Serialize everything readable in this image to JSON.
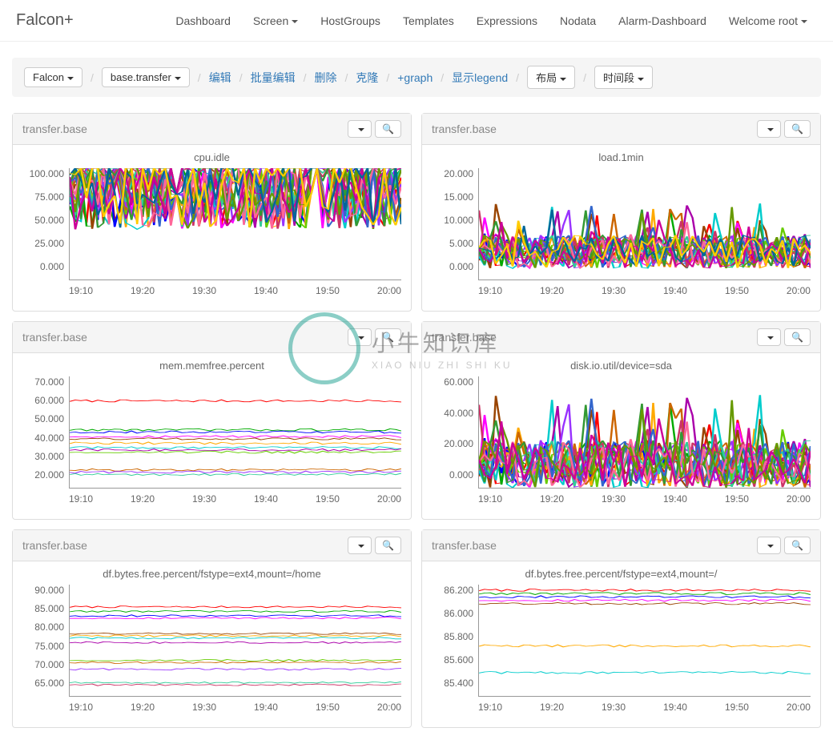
{
  "brand": "Falcon+",
  "nav": {
    "dashboard": "Dashboard",
    "screen": "Screen",
    "hostgroups": "HostGroups",
    "templates": "Templates",
    "expressions": "Expressions",
    "nodata": "Nodata",
    "alarm": "Alarm-Dashboard",
    "welcome": "Welcome root"
  },
  "breadcrumb": {
    "falcon": "Falcon",
    "base_transfer": "base.transfer",
    "edit": "编辑",
    "batch_edit": "批量编辑",
    "delete": "删除",
    "clone": "克隆",
    "add_graph": "+graph",
    "show_legend": "显示legend",
    "layout": "布局",
    "time_range": "时间段"
  },
  "common": {
    "panel_title": "transfer.base",
    "xticks": [
      "19:10",
      "19:20",
      "19:30",
      "19:40",
      "19:50",
      "20:00"
    ],
    "series_colors": [
      "#ff0000",
      "#00aa00",
      "#0000ff",
      "#ff00ff",
      "#994400",
      "#ffaa00",
      "#00cccc",
      "#aa00aa",
      "#66cc00",
      "#cc6600",
      "#9933ff",
      "#33cc99",
      "#cc3366",
      "#339933",
      "#3366cc",
      "#ff6699",
      "#669900",
      "#cc0099",
      "#006699",
      "#ffcc00"
    ]
  },
  "charts": [
    {
      "title": "cpu.idle",
      "ymin": 0,
      "ymax": 100,
      "yticks": [
        "100.000",
        "75.000",
        "50.000",
        "25.000",
        "0.000"
      ],
      "mode": "noisy",
      "baseline": 85,
      "spread": 80,
      "lines": 20,
      "points": 60
    },
    {
      "title": "load.1min",
      "ymin": 0,
      "ymax": 20,
      "yticks": [
        "20.000",
        "15.000",
        "10.000",
        "5.000",
        "0.000"
      ],
      "mode": "noisy",
      "baseline": 5,
      "spread": 6,
      "lines": 20,
      "points": 60,
      "spikes": true
    },
    {
      "title": "mem.memfree.percent",
      "ymin": 20,
      "ymax": 70,
      "yticks": [
        "70.000",
        "60.000",
        "50.000",
        "40.000",
        "30.000",
        "20.000"
      ],
      "mode": "flat",
      "levels": [
        59,
        46,
        45,
        43,
        42,
        40,
        38,
        37,
        36,
        28,
        27,
        26
      ],
      "jitter": 0.5,
      "points": 60
    },
    {
      "title": "disk.io.util/device=sda",
      "ymin": 0,
      "ymax": 70,
      "yticks": [
        "60.000",
        "40.000",
        "20.000",
        "0.000"
      ],
      "mode": "noisy",
      "baseline": 15,
      "spread": 30,
      "lines": 18,
      "points": 60,
      "spikes": true
    },
    {
      "title": "df.bytes.free.percent/fstype=ext4,mount=/home",
      "ymin": 65,
      "ymax": 90,
      "yticks": [
        "90.000",
        "85.000",
        "80.000",
        "75.000",
        "70.000",
        "65.000"
      ],
      "mode": "flat",
      "levels": [
        85,
        84,
        83,
        82.5,
        79,
        78.5,
        78,
        77,
        73,
        72.5,
        71,
        68,
        67.5
      ],
      "jitter": 0.2,
      "points": 60
    },
    {
      "title": "df.bytes.free.percent/fstype=ext4,mount=/",
      "ymin": 85.2,
      "ymax": 86.2,
      "yticks": [
        "86.200",
        "86.000",
        "85.800",
        "85.600",
        "85.400"
      ],
      "mode": "flat",
      "levels": [
        86.15,
        86.12,
        86.09,
        86.06,
        86.03,
        85.65,
        85.41
      ],
      "jitter": 0.01,
      "points": 60
    }
  ],
  "watermark": {
    "main": "小牛知识库",
    "sub": "XIAO NIU ZHI SHI KU"
  }
}
